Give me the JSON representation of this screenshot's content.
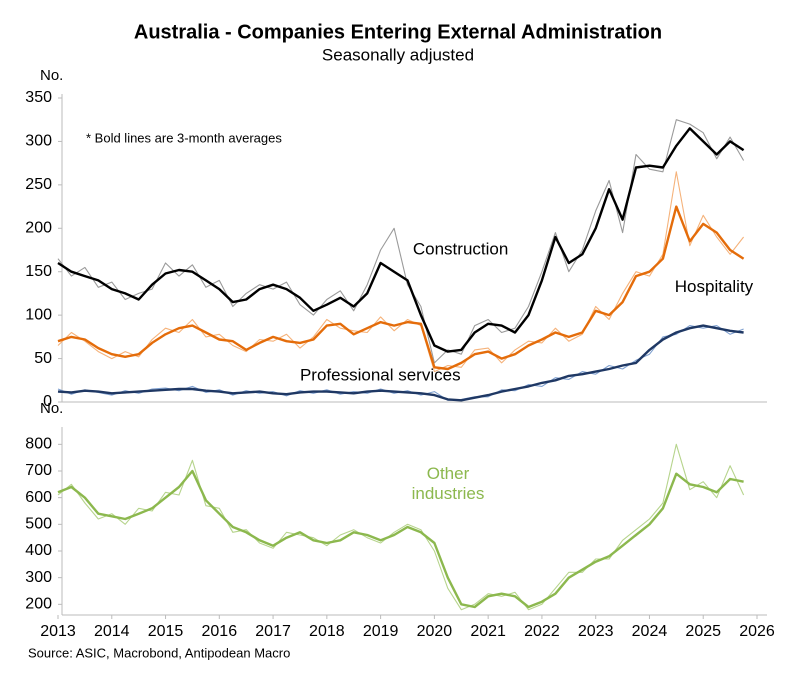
{
  "chart_data": [
    {
      "type": "line",
      "title": "Australia - Companies Entering External Administration",
      "subtitle": "Seasonally adjusted",
      "ylabel": "No.",
      "annotation": "* Bold lines are 3-month averages",
      "xlim": [
        2013,
        2026
      ],
      "ylim": [
        0,
        350
      ],
      "yticks": [
        0,
        50,
        100,
        150,
        200,
        250,
        300,
        350
      ],
      "x": [
        2013,
        2013.25,
        2013.5,
        2013.75,
        2014,
        2014.25,
        2014.5,
        2014.75,
        2015,
        2015.25,
        2015.5,
        2015.75,
        2016,
        2016.25,
        2016.5,
        2016.75,
        2017,
        2017.25,
        2017.5,
        2017.75,
        2018,
        2018.25,
        2018.5,
        2018.75,
        2019,
        2019.25,
        2019.5,
        2019.75,
        2020,
        2020.25,
        2020.5,
        2020.75,
        2021,
        2021.25,
        2021.5,
        2021.75,
        2022,
        2022.25,
        2022.5,
        2022.75,
        2023,
        2023.25,
        2023.5,
        2023.75,
        2024,
        2024.25,
        2024.5,
        2024.75,
        2025,
        2025.25,
        2025.5,
        2025.75
      ],
      "series": [
        {
          "color": "#9a9a9a",
          "values": [
            165,
            145,
            155,
            132,
            138,
            118,
            125,
            130,
            160,
            145,
            158,
            132,
            140,
            110,
            125,
            135,
            130,
            138,
            112,
            100,
            118,
            128,
            105,
            135,
            175,
            200,
            135,
            110,
            45,
            60,
            55,
            88,
            95,
            80,
            85,
            110,
            150,
            195,
            150,
            175,
            220,
            255,
            195,
            285,
            268,
            265,
            325,
            320,
            310,
            280,
            305,
            278
          ]
        },
        {
          "name": "Construction",
          "color": "#000000",
          "bold": true,
          "values": [
            160,
            150,
            145,
            140,
            130,
            125,
            118,
            135,
            148,
            152,
            150,
            140,
            130,
            115,
            118,
            130,
            135,
            130,
            120,
            105,
            112,
            120,
            110,
            125,
            160,
            150,
            140,
            100,
            65,
            58,
            60,
            80,
            90,
            88,
            80,
            100,
            140,
            190,
            160,
            170,
            200,
            245,
            210,
            270,
            272,
            270,
            295,
            315,
            300,
            285,
            300,
            290
          ]
        },
        {
          "color": "#f5b27a",
          "values": [
            65,
            80,
            70,
            58,
            50,
            58,
            52,
            72,
            85,
            80,
            95,
            75,
            78,
            65,
            58,
            72,
            70,
            78,
            62,
            75,
            95,
            85,
            82,
            80,
            98,
            82,
            95,
            88,
            35,
            42,
            40,
            60,
            62,
            45,
            60,
            70,
            68,
            85,
            70,
            78,
            110,
            95,
            125,
            150,
            145,
            170,
            265,
            180,
            215,
            190,
            170,
            190
          ]
        },
        {
          "name": "Hospitality",
          "color": "#e46c0a",
          "bold": true,
          "values": [
            70,
            75,
            72,
            62,
            55,
            52,
            55,
            68,
            78,
            85,
            88,
            80,
            72,
            70,
            60,
            68,
            75,
            70,
            68,
            72,
            88,
            90,
            78,
            85,
            92,
            88,
            92,
            90,
            40,
            38,
            45,
            55,
            58,
            50,
            55,
            65,
            72,
            80,
            75,
            80,
            105,
            100,
            115,
            145,
            150,
            165,
            225,
            185,
            205,
            195,
            175,
            165
          ]
        },
        {
          "color": "#7fa0d0",
          "values": [
            15,
            9,
            14,
            11,
            8,
            13,
            10,
            15,
            16,
            13,
            18,
            11,
            14,
            8,
            13,
            10,
            12,
            7,
            13,
            10,
            14,
            9,
            12,
            10,
            15,
            10,
            13,
            8,
            12,
            2,
            3,
            6,
            6,
            14,
            13,
            20,
            18,
            28,
            26,
            35,
            32,
            42,
            38,
            48,
            55,
            75,
            78,
            88,
            85,
            88,
            78,
            84
          ]
        },
        {
          "name": "Professional services",
          "color": "#1f3864",
          "bold": true,
          "values": [
            12,
            11,
            13,
            12,
            10,
            11,
            12,
            13,
            14,
            15,
            15,
            13,
            12,
            10,
            11,
            12,
            10,
            9,
            11,
            12,
            12,
            11,
            10,
            12,
            13,
            12,
            11,
            10,
            8,
            3,
            2,
            5,
            8,
            12,
            15,
            18,
            22,
            25,
            30,
            32,
            35,
            38,
            42,
            45,
            60,
            72,
            80,
            85,
            88,
            85,
            82,
            80
          ]
        }
      ]
    },
    {
      "type": "line",
      "ylabel": "No.",
      "source": "Source: ASIC, Macrobond, Antipodean Macro",
      "xlim": [
        2013,
        2026
      ],
      "xticks": [
        2013,
        2014,
        2015,
        2016,
        2017,
        2018,
        2019,
        2020,
        2021,
        2022,
        2023,
        2024,
        2025,
        2026
      ],
      "ylim": [
        160,
        850
      ],
      "yticks": [
        200,
        300,
        400,
        500,
        600,
        700,
        800
      ],
      "x": [
        2013,
        2013.25,
        2013.5,
        2013.75,
        2014,
        2014.25,
        2014.5,
        2014.75,
        2015,
        2015.25,
        2015.5,
        2015.75,
        2016,
        2016.25,
        2016.5,
        2016.75,
        2017,
        2017.25,
        2017.5,
        2017.75,
        2018,
        2018.25,
        2018.5,
        2018.75,
        2019,
        2019.25,
        2019.5,
        2019.75,
        2020,
        2020.25,
        2020.5,
        2020.75,
        2021,
        2021.25,
        2021.5,
        2021.75,
        2022,
        2022.25,
        2022.5,
        2022.75,
        2023,
        2023.25,
        2023.5,
        2023.75,
        2024,
        2024.25,
        2024.5,
        2024.75,
        2025,
        2025.25,
        2025.5,
        2025.75
      ],
      "series": [
        {
          "color": "#b6d48c",
          "values": [
            610,
            650,
            580,
            520,
            540,
            500,
            560,
            550,
            620,
            610,
            740,
            570,
            560,
            470,
            480,
            430,
            410,
            470,
            460,
            450,
            420,
            460,
            480,
            450,
            430,
            470,
            500,
            480,
            400,
            260,
            180,
            200,
            240,
            230,
            245,
            180,
            200,
            260,
            320,
            320,
            370,
            370,
            440,
            480,
            520,
            580,
            800,
            630,
            660,
            600,
            720,
            610
          ]
        },
        {
          "name": "Other industries",
          "color": "#8cb84e",
          "bold": true,
          "values": [
            620,
            640,
            600,
            540,
            530,
            520,
            540,
            560,
            600,
            640,
            700,
            590,
            540,
            490,
            470,
            440,
            420,
            450,
            470,
            440,
            430,
            440,
            470,
            460,
            440,
            460,
            490,
            470,
            430,
            300,
            200,
            190,
            230,
            240,
            230,
            190,
            210,
            240,
            300,
            330,
            360,
            380,
            420,
            460,
            500,
            560,
            690,
            650,
            640,
            620,
            670,
            660
          ]
        }
      ]
    }
  ]
}
